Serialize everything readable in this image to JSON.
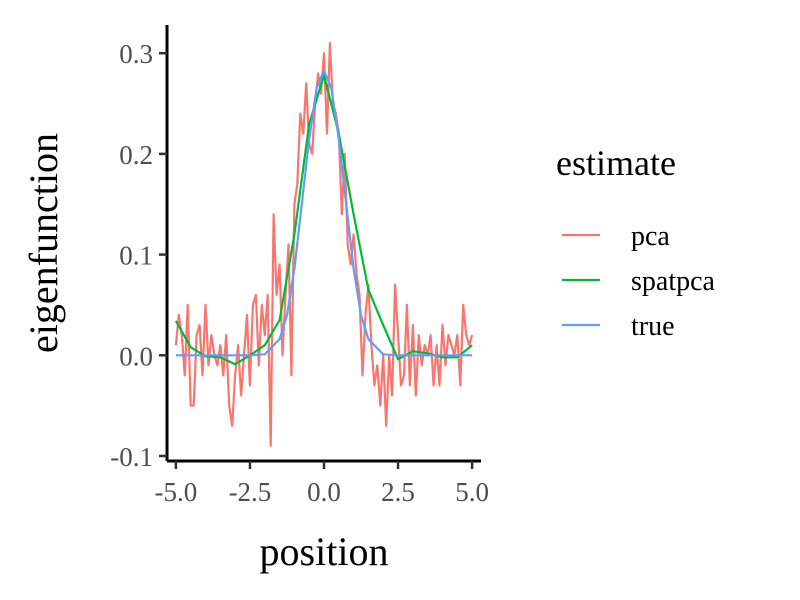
{
  "chart_data": {
    "type": "line",
    "title": "",
    "xlabel": "position",
    "ylabel": "eigenfunction",
    "xlim": [
      -5.3,
      5.3
    ],
    "ylim": [
      -0.105,
      0.328
    ],
    "x_ticks": [
      -5.0,
      -2.5,
      0.0,
      2.5,
      5.0
    ],
    "x_tick_labels": [
      "-5.0",
      "-2.5",
      "0.0",
      "2.5",
      "5.0"
    ],
    "y_ticks": [
      -0.1,
      0.0,
      0.1,
      0.2,
      0.3
    ],
    "y_tick_labels": [
      "-0.1",
      "0.0",
      "0.1",
      "0.2",
      "0.3"
    ],
    "grid": false,
    "legend": {
      "title": "estimate",
      "position": "right"
    },
    "series": [
      {
        "name": "pca",
        "color": "#F8766D",
        "x": [
          -5.0,
          -4.9,
          -4.8,
          -4.7,
          -4.6,
          -4.5,
          -4.4,
          -4.3,
          -4.2,
          -4.1,
          -4.0,
          -3.9,
          -3.8,
          -3.7,
          -3.6,
          -3.5,
          -3.4,
          -3.3,
          -3.2,
          -3.1,
          -3.0,
          -2.9,
          -2.8,
          -2.7,
          -2.6,
          -2.5,
          -2.4,
          -2.3,
          -2.2,
          -2.1,
          -2.0,
          -1.9,
          -1.8,
          -1.7,
          -1.6,
          -1.5,
          -1.4,
          -1.3,
          -1.2,
          -1.1,
          -1.0,
          -0.9,
          -0.8,
          -0.7,
          -0.6,
          -0.5,
          -0.4,
          -0.3,
          -0.2,
          -0.1,
          0.0,
          0.1,
          0.2,
          0.3,
          0.4,
          0.5,
          0.6,
          0.7,
          0.8,
          0.9,
          1.0,
          1.1,
          1.2,
          1.3,
          1.4,
          1.5,
          1.6,
          1.7,
          1.8,
          1.9,
          2.0,
          2.1,
          2.2,
          2.3,
          2.4,
          2.5,
          2.6,
          2.7,
          2.8,
          2.9,
          3.0,
          3.1,
          3.2,
          3.3,
          3.4,
          3.5,
          3.6,
          3.7,
          3.8,
          3.9,
          4.0,
          4.1,
          4.2,
          4.3,
          4.4,
          4.5,
          4.6,
          4.7,
          4.8,
          4.9,
          5.0
        ],
        "y": [
          0.01,
          0.04,
          0.02,
          -0.02,
          0.05,
          -0.05,
          -0.05,
          0.02,
          0.03,
          -0.02,
          0.05,
          -0.01,
          0.02,
          0.0,
          -0.01,
          0.01,
          -0.02,
          0.02,
          -0.05,
          -0.07,
          -0.02,
          0.01,
          -0.04,
          0.0,
          0.04,
          -0.03,
          0.05,
          0.06,
          -0.01,
          0.05,
          0.02,
          0.06,
          -0.09,
          0.14,
          0.06,
          0.09,
          0.0,
          0.06,
          0.11,
          -0.02,
          0.15,
          0.17,
          0.24,
          0.22,
          0.27,
          0.21,
          0.2,
          0.25,
          0.28,
          0.26,
          0.3,
          0.22,
          0.31,
          0.25,
          0.24,
          0.22,
          0.14,
          0.2,
          0.11,
          0.09,
          0.12,
          0.08,
          0.06,
          -0.02,
          0.04,
          0.07,
          0.01,
          -0.03,
          -0.01,
          -0.05,
          0.0,
          -0.07,
          0.0,
          -0.04,
          0.07,
          0.02,
          -0.03,
          -0.02,
          0.05,
          -0.03,
          0.03,
          -0.04,
          0.02,
          -0.01,
          0.01,
          0.0,
          0.02,
          -0.03,
          0.01,
          -0.03,
          0.03,
          -0.01,
          0.02,
          0.01,
          0.0,
          0.02,
          -0.03,
          0.05,
          0.02,
          0.01,
          0.02
        ]
      },
      {
        "name": "spatpca",
        "color": "#00BA38",
        "x": [
          -5.0,
          -4.5,
          -4.0,
          -3.5,
          -3.0,
          -2.5,
          -2.0,
          -1.5,
          -1.0,
          -0.5,
          0.0,
          0.5,
          1.0,
          1.5,
          2.0,
          2.5,
          3.0,
          3.5,
          4.0,
          4.5,
          5.0
        ],
        "y": [
          0.034,
          0.008,
          -0.001,
          -0.002,
          -0.009,
          0.0,
          0.01,
          0.035,
          0.12,
          0.23,
          0.278,
          0.22,
          0.14,
          0.065,
          0.03,
          -0.004,
          0.004,
          0.002,
          -0.002,
          -0.002,
          0.01
        ]
      },
      {
        "name": "true",
        "color": "#619CFF",
        "x": [
          -5.0,
          -4.5,
          -4.0,
          -3.5,
          -3.0,
          -2.5,
          -2.0,
          -1.5,
          -1.25,
          -1.0,
          -0.75,
          -0.5,
          -0.25,
          0.0,
          0.25,
          0.5,
          0.75,
          1.0,
          1.25,
          1.5,
          2.0,
          2.5,
          3.0,
          3.5,
          4.0,
          4.5,
          5.0
        ],
        "y": [
          0.0,
          0.0,
          0.0,
          0.0,
          0.0,
          0.0,
          0.001,
          0.016,
          0.04,
          0.086,
          0.15,
          0.215,
          0.265,
          0.283,
          0.265,
          0.215,
          0.15,
          0.086,
          0.04,
          0.016,
          0.001,
          0.0,
          0.0,
          0.0,
          0.0,
          0.0,
          0.0
        ]
      }
    ]
  }
}
